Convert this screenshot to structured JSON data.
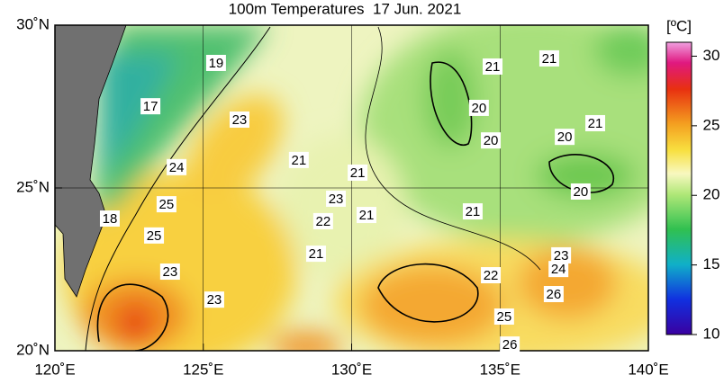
{
  "title": "100m Temperatures  17 Jun. 2021",
  "map": {
    "lonlim": [
      120,
      140
    ],
    "latlim": [
      20,
      30
    ],
    "lonticks": [
      {
        "value": 120,
        "label": "120˚E"
      },
      {
        "value": 125,
        "label": "125˚E"
      },
      {
        "value": 130,
        "label": "130˚E"
      },
      {
        "value": 135,
        "label": "135˚E"
      },
      {
        "value": 140,
        "label": "140˚E"
      }
    ],
    "latticks": [
      {
        "value": 20,
        "label": "20˚N"
      },
      {
        "value": 25,
        "label": "25˚N"
      },
      {
        "value": 30,
        "label": "30˚N"
      }
    ],
    "grid": true,
    "contour_labels": [
      {
        "value": 19,
        "lon": 125.43,
        "lat": 28.84
      },
      {
        "value": 17,
        "lon": 123.22,
        "lat": 27.51
      },
      {
        "value": 23,
        "lon": 126.22,
        "lat": 27.1
      },
      {
        "value": 24,
        "lon": 124.1,
        "lat": 25.64
      },
      {
        "value": 25,
        "lon": 123.76,
        "lat": 24.5
      },
      {
        "value": 18,
        "lon": 121.85,
        "lat": 24.06
      },
      {
        "value": 25,
        "lon": 123.34,
        "lat": 23.54
      },
      {
        "value": 23,
        "lon": 123.88,
        "lat": 22.43
      },
      {
        "value": 23,
        "lon": 125.37,
        "lat": 21.57
      },
      {
        "value": 21,
        "lon": 128.22,
        "lat": 25.86
      },
      {
        "value": 21,
        "lon": 130.2,
        "lat": 25.47
      },
      {
        "value": 23,
        "lon": 129.47,
        "lat": 24.67
      },
      {
        "value": 22,
        "lon": 129.04,
        "lat": 23.98
      },
      {
        "value": 21,
        "lon": 130.5,
        "lat": 24.17
      },
      {
        "value": 21,
        "lon": 128.8,
        "lat": 22.98
      },
      {
        "value": 21,
        "lon": 134.75,
        "lat": 28.73
      },
      {
        "value": 21,
        "lon": 136.66,
        "lat": 28.98
      },
      {
        "value": 20,
        "lon": 134.29,
        "lat": 27.46
      },
      {
        "value": 20,
        "lon": 134.69,
        "lat": 26.46
      },
      {
        "value": 20,
        "lon": 137.18,
        "lat": 26.57
      },
      {
        "value": 21,
        "lon": 138.21,
        "lat": 26.99
      },
      {
        "value": 20,
        "lon": 137.72,
        "lat": 24.89
      },
      {
        "value": 21,
        "lon": 134.08,
        "lat": 24.28
      },
      {
        "value": 22,
        "lon": 134.69,
        "lat": 22.32
      },
      {
        "value": 23,
        "lon": 137.06,
        "lat": 22.93
      },
      {
        "value": 24,
        "lon": 136.97,
        "lat": 22.51
      },
      {
        "value": 26,
        "lon": 136.81,
        "lat": 21.74
      },
      {
        "value": 25,
        "lon": 135.14,
        "lat": 21.05
      },
      {
        "value": 26,
        "lon": 135.33,
        "lat": 20.19
      }
    ]
  },
  "colorbar": {
    "unit": "[ºC]",
    "clim": [
      10,
      31
    ],
    "ticks": [
      10,
      15,
      20,
      25,
      30
    ]
  }
}
